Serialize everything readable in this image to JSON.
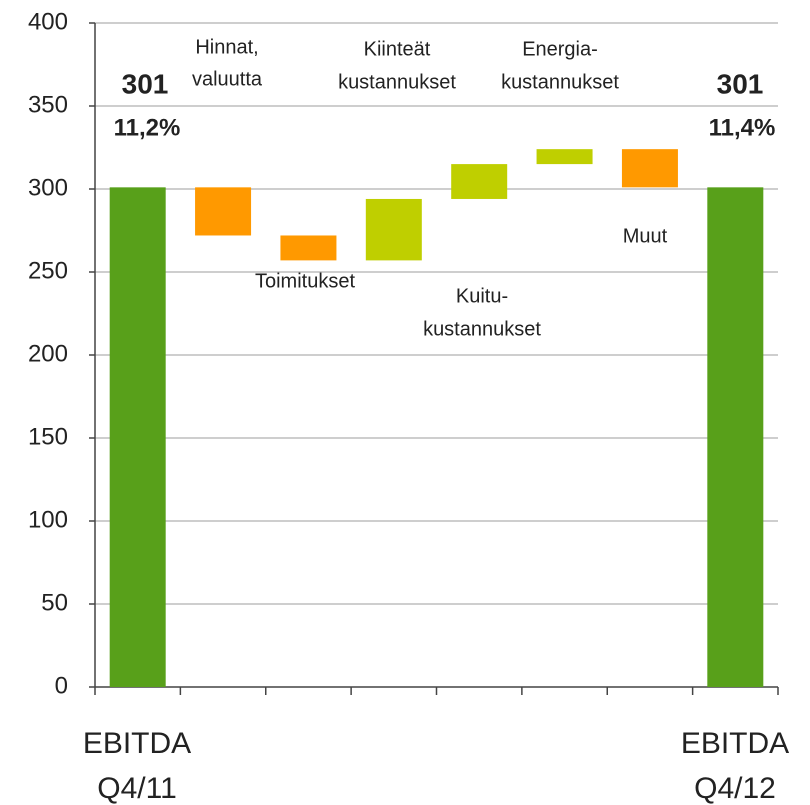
{
  "chart_data": {
    "type": "waterfall",
    "categories": [
      [
        "EBITDA",
        "Q4/11"
      ],
      [
        "Hinnat,",
        "valuutta"
      ],
      [
        "Toimitukset"
      ],
      [
        "Kuitu-",
        "kustannukset"
      ],
      [
        "Kiinteät",
        "kustannukset"
      ],
      [
        "Energia-",
        "kustannukset"
      ],
      [
        "Muut"
      ],
      [
        "EBITDA",
        "Q4/12"
      ]
    ],
    "values": [
      301,
      -29,
      -15,
      37,
      21,
      9,
      -23,
      301
    ],
    "totals": [
      true,
      false,
      false,
      false,
      false,
      false,
      false,
      true
    ],
    "colors": [
      "#58a01a",
      "#ff9900",
      "#ff9900",
      "#bfcf00",
      "#bfcf00",
      "#bfcf00",
      "#ff9900",
      "#58a01a"
    ],
    "annotations": [
      "11,2%",
      "11,4%"
    ],
    "ylim": [
      0,
      400
    ],
    "yticks": [
      0,
      50,
      100,
      150,
      200,
      250,
      300,
      350,
      400
    ],
    "grid": true
  }
}
